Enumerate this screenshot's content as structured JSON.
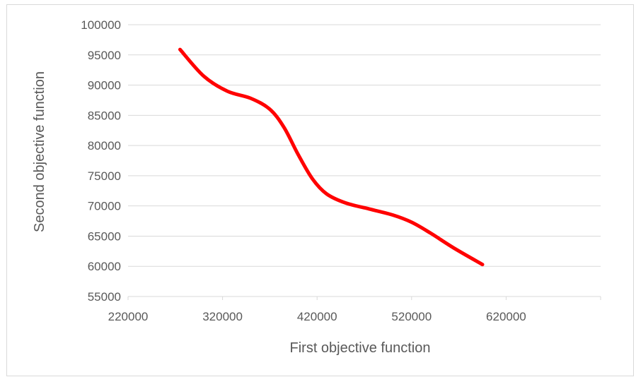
{
  "chart_data": {
    "type": "line",
    "title": "",
    "xlabel": "First objective function",
    "ylabel": "Second objective function",
    "xlim": [
      220000,
      720000
    ],
    "ylim": [
      55000,
      100000
    ],
    "x_ticks": [
      220000,
      320000,
      420000,
      520000,
      620000
    ],
    "y_ticks": [
      55000,
      60000,
      65000,
      70000,
      75000,
      80000,
      85000,
      90000,
      95000,
      100000
    ],
    "grid": "horizontal",
    "legend": "none",
    "series": [
      {
        "color": "#ff0000",
        "smooth": true,
        "x": [
          275000,
          300000,
          325000,
          350000,
          370000,
          385000,
          400000,
          415000,
          430000,
          450000,
          475000,
          500000,
          520000,
          540000,
          565000,
          595000
        ],
        "y": [
          95900,
          91500,
          89000,
          87800,
          86000,
          83000,
          78500,
          74500,
          72000,
          70500,
          69500,
          68500,
          67300,
          65500,
          63000,
          60300
        ]
      }
    ]
  },
  "colors": {
    "line": "#ff0000",
    "grid": "#d9d9d9",
    "text": "#595959",
    "frame": "#d9d9d9"
  }
}
